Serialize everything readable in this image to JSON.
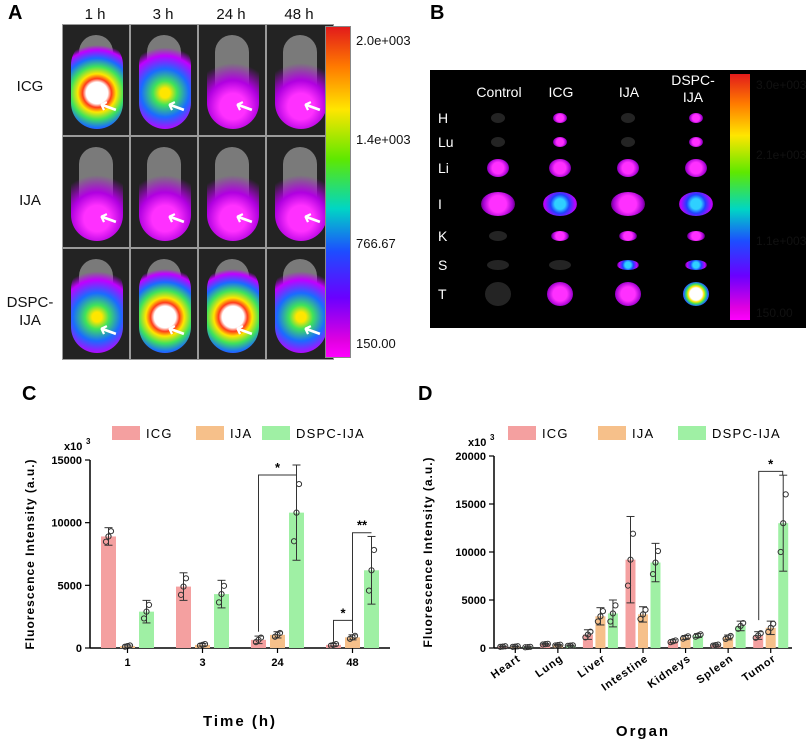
{
  "panelA": {
    "label": "A",
    "timepoints": [
      "1 h",
      "3 h",
      "24 h",
      "48 h"
    ],
    "groups": [
      "ICG",
      "IJA",
      "DSPC-\nIJA"
    ],
    "colorbar": [
      "2.0e+003",
      "1.4e+003",
      "766.67",
      "150.00"
    ]
  },
  "panelB": {
    "label": "B",
    "columns": [
      "Control",
      "ICG",
      "IJA",
      "DSPC-\nIJA"
    ],
    "organs": [
      "H",
      "Lu",
      "Li",
      "I",
      "K",
      "S",
      "T"
    ],
    "colorbar": [
      "3.0e+003",
      "2.1e+003",
      "1.1e+003",
      "150.00"
    ]
  },
  "chart_data": [
    {
      "panel": "C",
      "type": "bar",
      "scale_label": "x10",
      "scale_exp": "3",
      "categories": [
        "1",
        "3",
        "24",
        "48"
      ],
      "series": [
        {
          "name": "ICG",
          "color": "#f4a0a0",
          "values": [
            8900,
            4900,
            650,
            250
          ],
          "errors": [
            700,
            1100,
            300,
            100
          ]
        },
        {
          "name": "IJA",
          "color": "#f6c08a",
          "values": [
            150,
            250,
            1050,
            850
          ],
          "errors": [
            80,
            100,
            250,
            200
          ]
        },
        {
          "name": "DSPC-IJA",
          "color": "#9ff0a4",
          "values": [
            2900,
            4300,
            10800,
            6200
          ],
          "errors": [
            900,
            1100,
            3800,
            2700
          ]
        }
      ],
      "xlabel": "Time (h)",
      "ylabel": "Fluorescence Intensity (a.u.)",
      "ylim": [
        0,
        15000
      ],
      "yticks": [
        "0",
        "5000",
        "10000",
        "15000"
      ],
      "significance": [
        "*",
        "*",
        "**"
      ]
    },
    {
      "panel": "D",
      "type": "bar",
      "scale_label": "x10",
      "scale_exp": "3",
      "categories": [
        "Heart",
        "Lung",
        "Liver",
        "Intestine",
        "Kidneys",
        "Spleen",
        "Tumor"
      ],
      "series": [
        {
          "name": "ICG",
          "color": "#f4a0a0",
          "values": [
            150,
            400,
            1400,
            9200,
            700,
            300,
            1300
          ],
          "errors": [
            50,
            60,
            500,
            4500,
            150,
            80,
            400
          ]
        },
        {
          "name": "IJA",
          "color": "#f6c08a",
          "values": [
            150,
            300,
            3300,
            3500,
            1100,
            1100,
            2100
          ],
          "errors": [
            50,
            60,
            900,
            800,
            200,
            250,
            700
          ]
        },
        {
          "name": "DSPC-IJA",
          "color": "#9ff0a4",
          "values": [
            100,
            250,
            3600,
            8900,
            1300,
            2300,
            13000
          ],
          "errors": [
            40,
            50,
            1400,
            2000,
            200,
            500,
            5000
          ]
        }
      ],
      "xlabel": "Organ",
      "ylabel": "Fluorescence Intensity (a.u.)",
      "ylim": [
        0,
        20000
      ],
      "yticks": [
        "0",
        "5000",
        "10000",
        "15000",
        "20000"
      ],
      "significance": [
        "*"
      ]
    }
  ]
}
